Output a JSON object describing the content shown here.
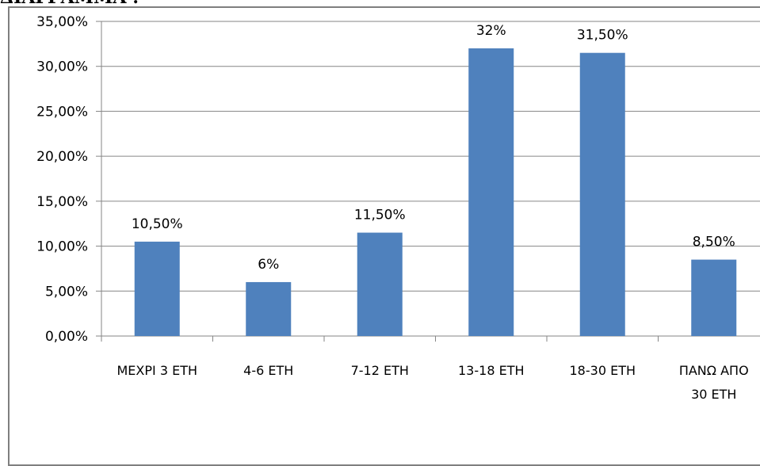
{
  "title": "ΔΙΑΓΡΑΜΜΑ :",
  "chart_data": {
    "type": "bar",
    "categories": [
      [
        "ΜΕΧΡΙ 3 ΕΤΗ"
      ],
      [
        "4-6 ΕΤΗ"
      ],
      [
        "7-12 ΕΤΗ"
      ],
      [
        "13-18 ΕΤΗ"
      ],
      [
        "18-30 ΕΤΗ"
      ],
      [
        "ΠΑΝΩ ΑΠΟ",
        "30 ΕΤΗ"
      ]
    ],
    "values": [
      10.5,
      6,
      11.5,
      32,
      31.5,
      8.5
    ],
    "data_labels": [
      "10,50%",
      "6%",
      "11,50%",
      "32%",
      "31,50%",
      "8,50%"
    ],
    "ylim": [
      0,
      35
    ],
    "yticks": [
      "0,00%",
      "5,00%",
      "10,00%",
      "15,00%",
      "20,00%",
      "25,00%",
      "30,00%",
      "35,00%"
    ],
    "grid": true,
    "bar_color": "#4F81BD",
    "grid_color": "#868686"
  }
}
